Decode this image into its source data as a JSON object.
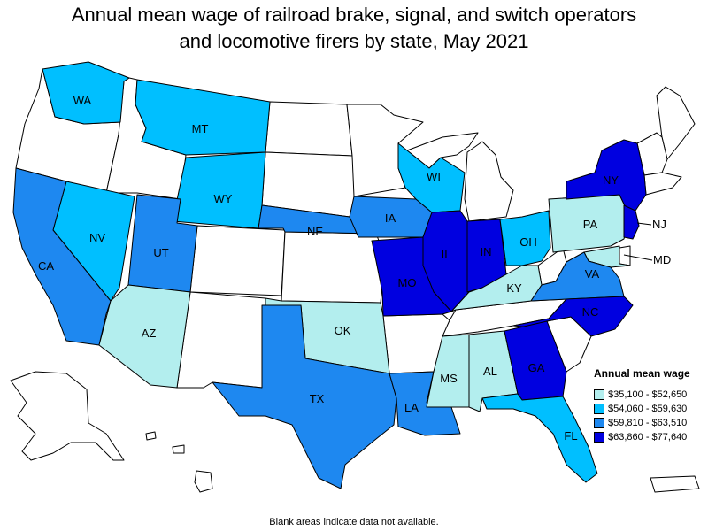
{
  "title_line1": "Annual mean wage of railroad brake, signal, and switch operators",
  "title_line2": "and locomotive firers by state, May 2021",
  "legend": {
    "title": "Annual mean wage",
    "items": [
      {
        "label": "$35,100 - $52,650",
        "color": "#b3eeee"
      },
      {
        "label": "$54,060 - $59,630",
        "color": "#00bfff"
      },
      {
        "label": "$59,810 - $63,510",
        "color": "#1e88f0"
      },
      {
        "label": "$63,860 - $77,640",
        "color": "#0000e0"
      }
    ]
  },
  "no_data_color": "#ffffff",
  "footnote": "Blank areas indicate data not available.",
  "state_labels": {
    "WA": "WA",
    "MT": "MT",
    "WY": "WY",
    "NV": "NV",
    "UT": "UT",
    "CA": "CA",
    "AZ": "AZ",
    "NE": "NE",
    "IA": "IA",
    "WI": "WI",
    "IL": "IL",
    "IN": "IN",
    "OH": "OH",
    "PA": "PA",
    "NY": "NY",
    "NJ": "NJ",
    "MD": "MD",
    "MO": "MO",
    "KY": "KY",
    "VA": "VA",
    "NC": "NC",
    "OK": "OK",
    "TX": "TX",
    "MS": "MS",
    "AL": "AL",
    "GA": "GA",
    "LA": "LA",
    "FL": "FL"
  }
}
